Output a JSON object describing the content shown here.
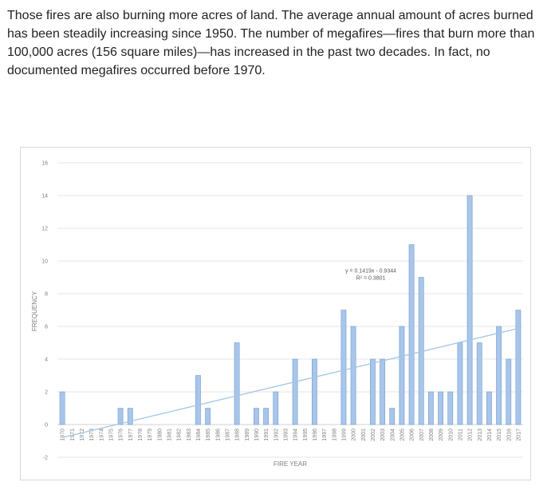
{
  "paragraph": "Those fires are also burning more acres of land. The average annual amount of acres burned has been steadily increasing since 1950. The number of megafires—fires that burn more than 100,000 acres (156 square miles)—has increased in the past two decades. In fact, no documented megafires occurred before 1970.",
  "chart_data": {
    "type": "bar",
    "title": "",
    "xlabel": "FIRE YEAR",
    "ylabel": "FREQUENCY",
    "ylim": [
      -2,
      16
    ],
    "yticks": [
      -2,
      0,
      2,
      4,
      6,
      8,
      10,
      12,
      14,
      16
    ],
    "categories": [
      "1970",
      "1971",
      "1972",
      "1973",
      "1974",
      "1975",
      "1976",
      "1977",
      "1978",
      "1979",
      "1980",
      "1981",
      "1982",
      "1983",
      "1984",
      "1985",
      "1986",
      "1987",
      "1988",
      "1989",
      "1990",
      "1991",
      "1992",
      "1993",
      "1994",
      "1995",
      "1996",
      "1997",
      "1998",
      "1999",
      "2000",
      "2001",
      "2002",
      "2003",
      "2004",
      "2005",
      "2006",
      "2007",
      "2008",
      "2009",
      "2010",
      "2011",
      "2012",
      "2013",
      "2014",
      "2015",
      "2016",
      "2017"
    ],
    "values": [
      2,
      0,
      0,
      0,
      0,
      0,
      1,
      1,
      0,
      0,
      0,
      0,
      0,
      0,
      3,
      1,
      0,
      0,
      5,
      0,
      1,
      1,
      2,
      0,
      4,
      0,
      4,
      0,
      0,
      7,
      6,
      0,
      4,
      4,
      1,
      6,
      11,
      9,
      2,
      2,
      2,
      5,
      14,
      5,
      2,
      6,
      4,
      7
    ],
    "trendline": {
      "type": "linear",
      "slope": 0.1419,
      "intercept": -0.9344,
      "equation": "y = 0.1419x - 0.9344",
      "r_squared": "R² = 0.3801"
    },
    "colors": {
      "bar_fill": "#a9c5e8",
      "bar_stroke": "#6f9fd8",
      "trend": "#a4c6e6",
      "grid": "#e6e6e6"
    }
  }
}
